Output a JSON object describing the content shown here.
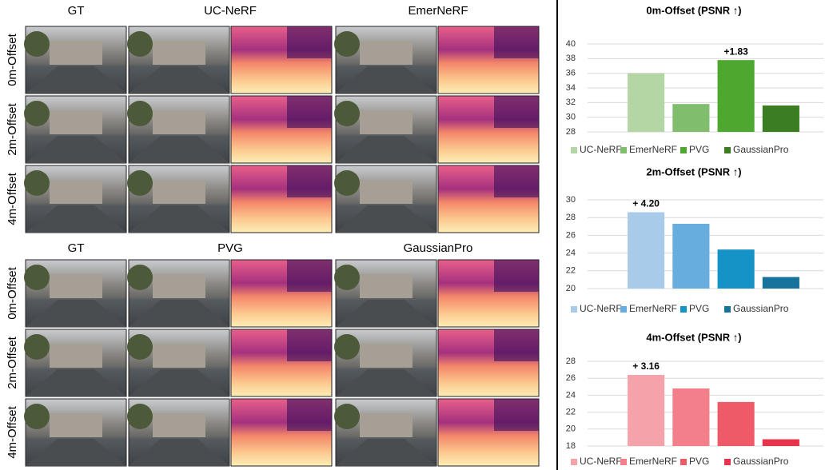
{
  "figure": {
    "top_headers": [
      "GT",
      "UC-NeRF",
      "EmerNeRF"
    ],
    "bottom_headers": [
      "GT",
      "PVG",
      "GaussianPro"
    ],
    "row_labels": [
      "0m-Offset",
      "2m-Offset",
      "4m-Offset"
    ]
  },
  "chart_data": [
    {
      "type": "bar",
      "title": "0m-Offset (PSNR ↑)",
      "categories": [
        "UC-NeRF",
        "EmerNeRF",
        "PVG",
        "GaussianPro"
      ],
      "values": [
        36.0,
        31.8,
        37.8,
        31.6
      ],
      "colors": [
        "#b3d6a4",
        "#80bd6c",
        "#4ea72e",
        "#3a7d22"
      ],
      "ylim": [
        28,
        40
      ],
      "yticks": [
        28,
        30,
        32,
        34,
        36,
        38,
        40
      ],
      "grid": true,
      "annotations": [
        {
          "category": "PVG",
          "text": "+1.83",
          "color": "#3f8f25"
        }
      ]
    },
    {
      "type": "bar",
      "title": "2m-Offset (PSNR ↑)",
      "categories": [
        "UC-NeRF",
        "EmerNeRF",
        "PVG",
        "GaussianPro"
      ],
      "values": [
        28.6,
        27.3,
        24.4,
        21.3
      ],
      "colors": [
        "#a8cbea",
        "#67aedf",
        "#1593c6",
        "#15739c"
      ],
      "ylim": [
        20,
        30
      ],
      "yticks": [
        20,
        22,
        24,
        26,
        28,
        30
      ],
      "grid": true,
      "annotations": [
        {
          "category": "UC-NeRF",
          "text": "+ 4.20",
          "color": "#1f7fb5"
        }
      ]
    },
    {
      "type": "bar",
      "title": "4m-Offset (PSNR ↑)",
      "categories": [
        "UC-NeRF",
        "EmerNeRF",
        "PVG",
        "GaussianPro"
      ],
      "values": [
        26.4,
        24.8,
        23.2,
        18.8
      ],
      "colors": [
        "#f5a3ab",
        "#f27f8a",
        "#ee5a68",
        "#e8344a"
      ],
      "ylim": [
        18,
        28
      ],
      "yticks": [
        18,
        20,
        22,
        24,
        26,
        28
      ],
      "grid": true,
      "annotations": [
        {
          "category": "UC-NeRF",
          "text": "+ 3.16",
          "color": "#e8505f"
        }
      ]
    }
  ]
}
